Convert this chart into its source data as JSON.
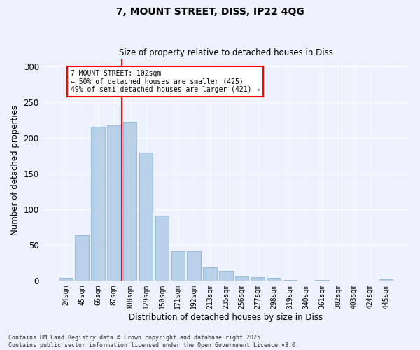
{
  "title_line1": "7, MOUNT STREET, DISS, IP22 4QG",
  "title_line2": "Size of property relative to detached houses in Diss",
  "xlabel": "Distribution of detached houses by size in Diss",
  "ylabel": "Number of detached properties",
  "categories": [
    "24sqm",
    "45sqm",
    "66sqm",
    "87sqm",
    "108sqm",
    "129sqm",
    "150sqm",
    "171sqm",
    "192sqm",
    "213sqm",
    "235sqm",
    "256sqm",
    "277sqm",
    "298sqm",
    "319sqm",
    "340sqm",
    "361sqm",
    "382sqm",
    "403sqm",
    "424sqm",
    "445sqm"
  ],
  "values": [
    4,
    64,
    216,
    218,
    222,
    179,
    91,
    41,
    41,
    19,
    14,
    6,
    5,
    4,
    1,
    0,
    1,
    0,
    0,
    0,
    2
  ],
  "bar_color": "#b8d0e8",
  "bar_edge_color": "#7aafd4",
  "vline_x_index": 4,
  "vline_color": "red",
  "annotation_text": "7 MOUNT STREET: 102sqm\n← 50% of detached houses are smaller (425)\n49% of semi-detached houses are larger (421) →",
  "annotation_box_color": "white",
  "annotation_box_edge": "red",
  "ylim": [
    0,
    310
  ],
  "yticks": [
    0,
    50,
    100,
    150,
    200,
    250,
    300
  ],
  "bg_color": "#eef2ff",
  "grid_color": "white",
  "footer": "Contains HM Land Registry data © Crown copyright and database right 2025.\nContains public sector information licensed under the Open Government Licence v3.0."
}
